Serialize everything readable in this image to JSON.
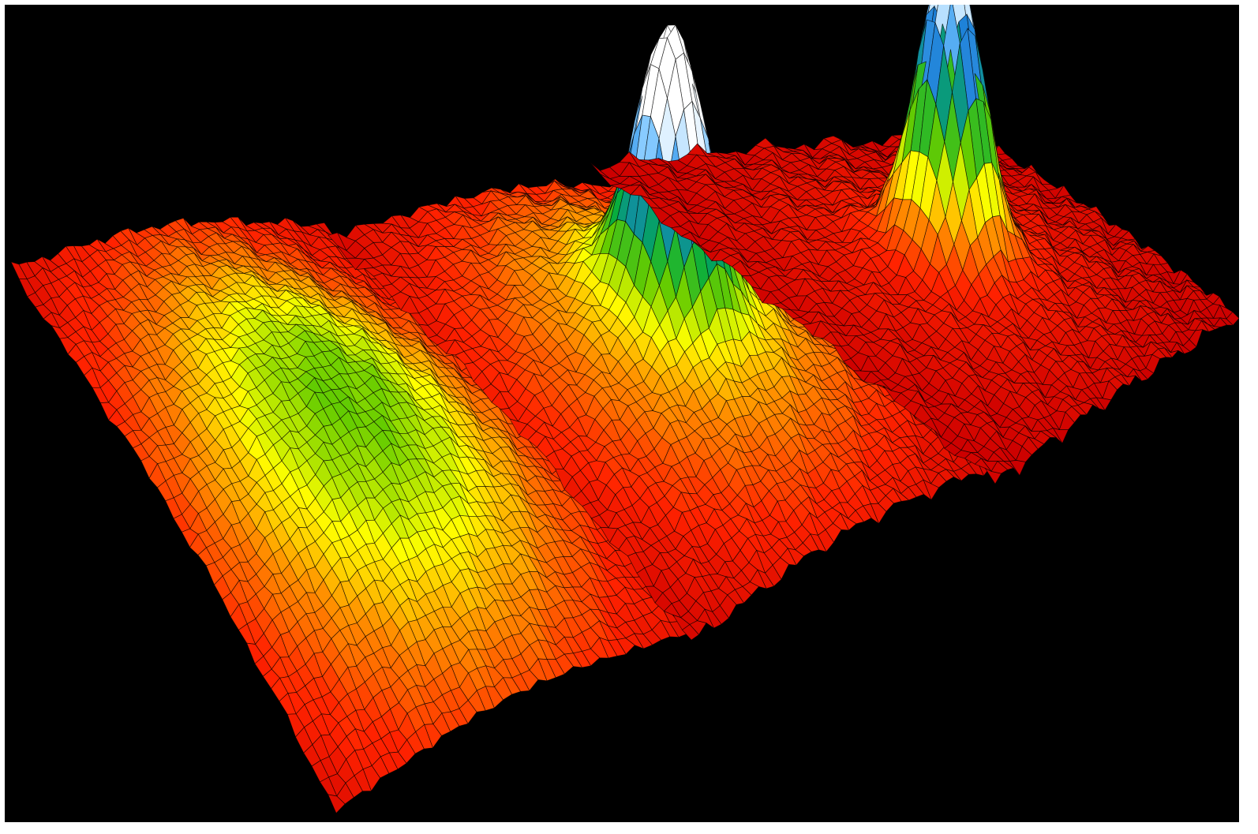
{
  "chart_data": {
    "type": "surface",
    "title": "",
    "xlabel": "",
    "ylabel": "",
    "zlabel": "",
    "grid": true,
    "background": "#000000",
    "wireframe_color": "#000000",
    "colormap": [
      "#cc0000",
      "#ff2200",
      "#ff8800",
      "#ffff00",
      "#66cc00",
      "#00aa44",
      "#1a7fd6",
      "#6fc0ff",
      "#ffffff"
    ],
    "panels": [
      {
        "name": "",
        "components": [
          {
            "kind": "thermal",
            "peak_height": 0.5,
            "width": 0.33
          }
        ]
      },
      {
        "name": "",
        "components": [
          {
            "kind": "thermal",
            "peak_height": 0.38,
            "width": 0.32
          },
          {
            "kind": "condensate",
            "peak_height": 0.96,
            "width": 0.075
          }
        ]
      },
      {
        "name": "",
        "components": [
          {
            "kind": "thermal",
            "peak_height": 0.12,
            "width": 0.28
          },
          {
            "kind": "condensate",
            "peak_height": 1.0,
            "width": 0.07
          }
        ]
      }
    ]
  }
}
